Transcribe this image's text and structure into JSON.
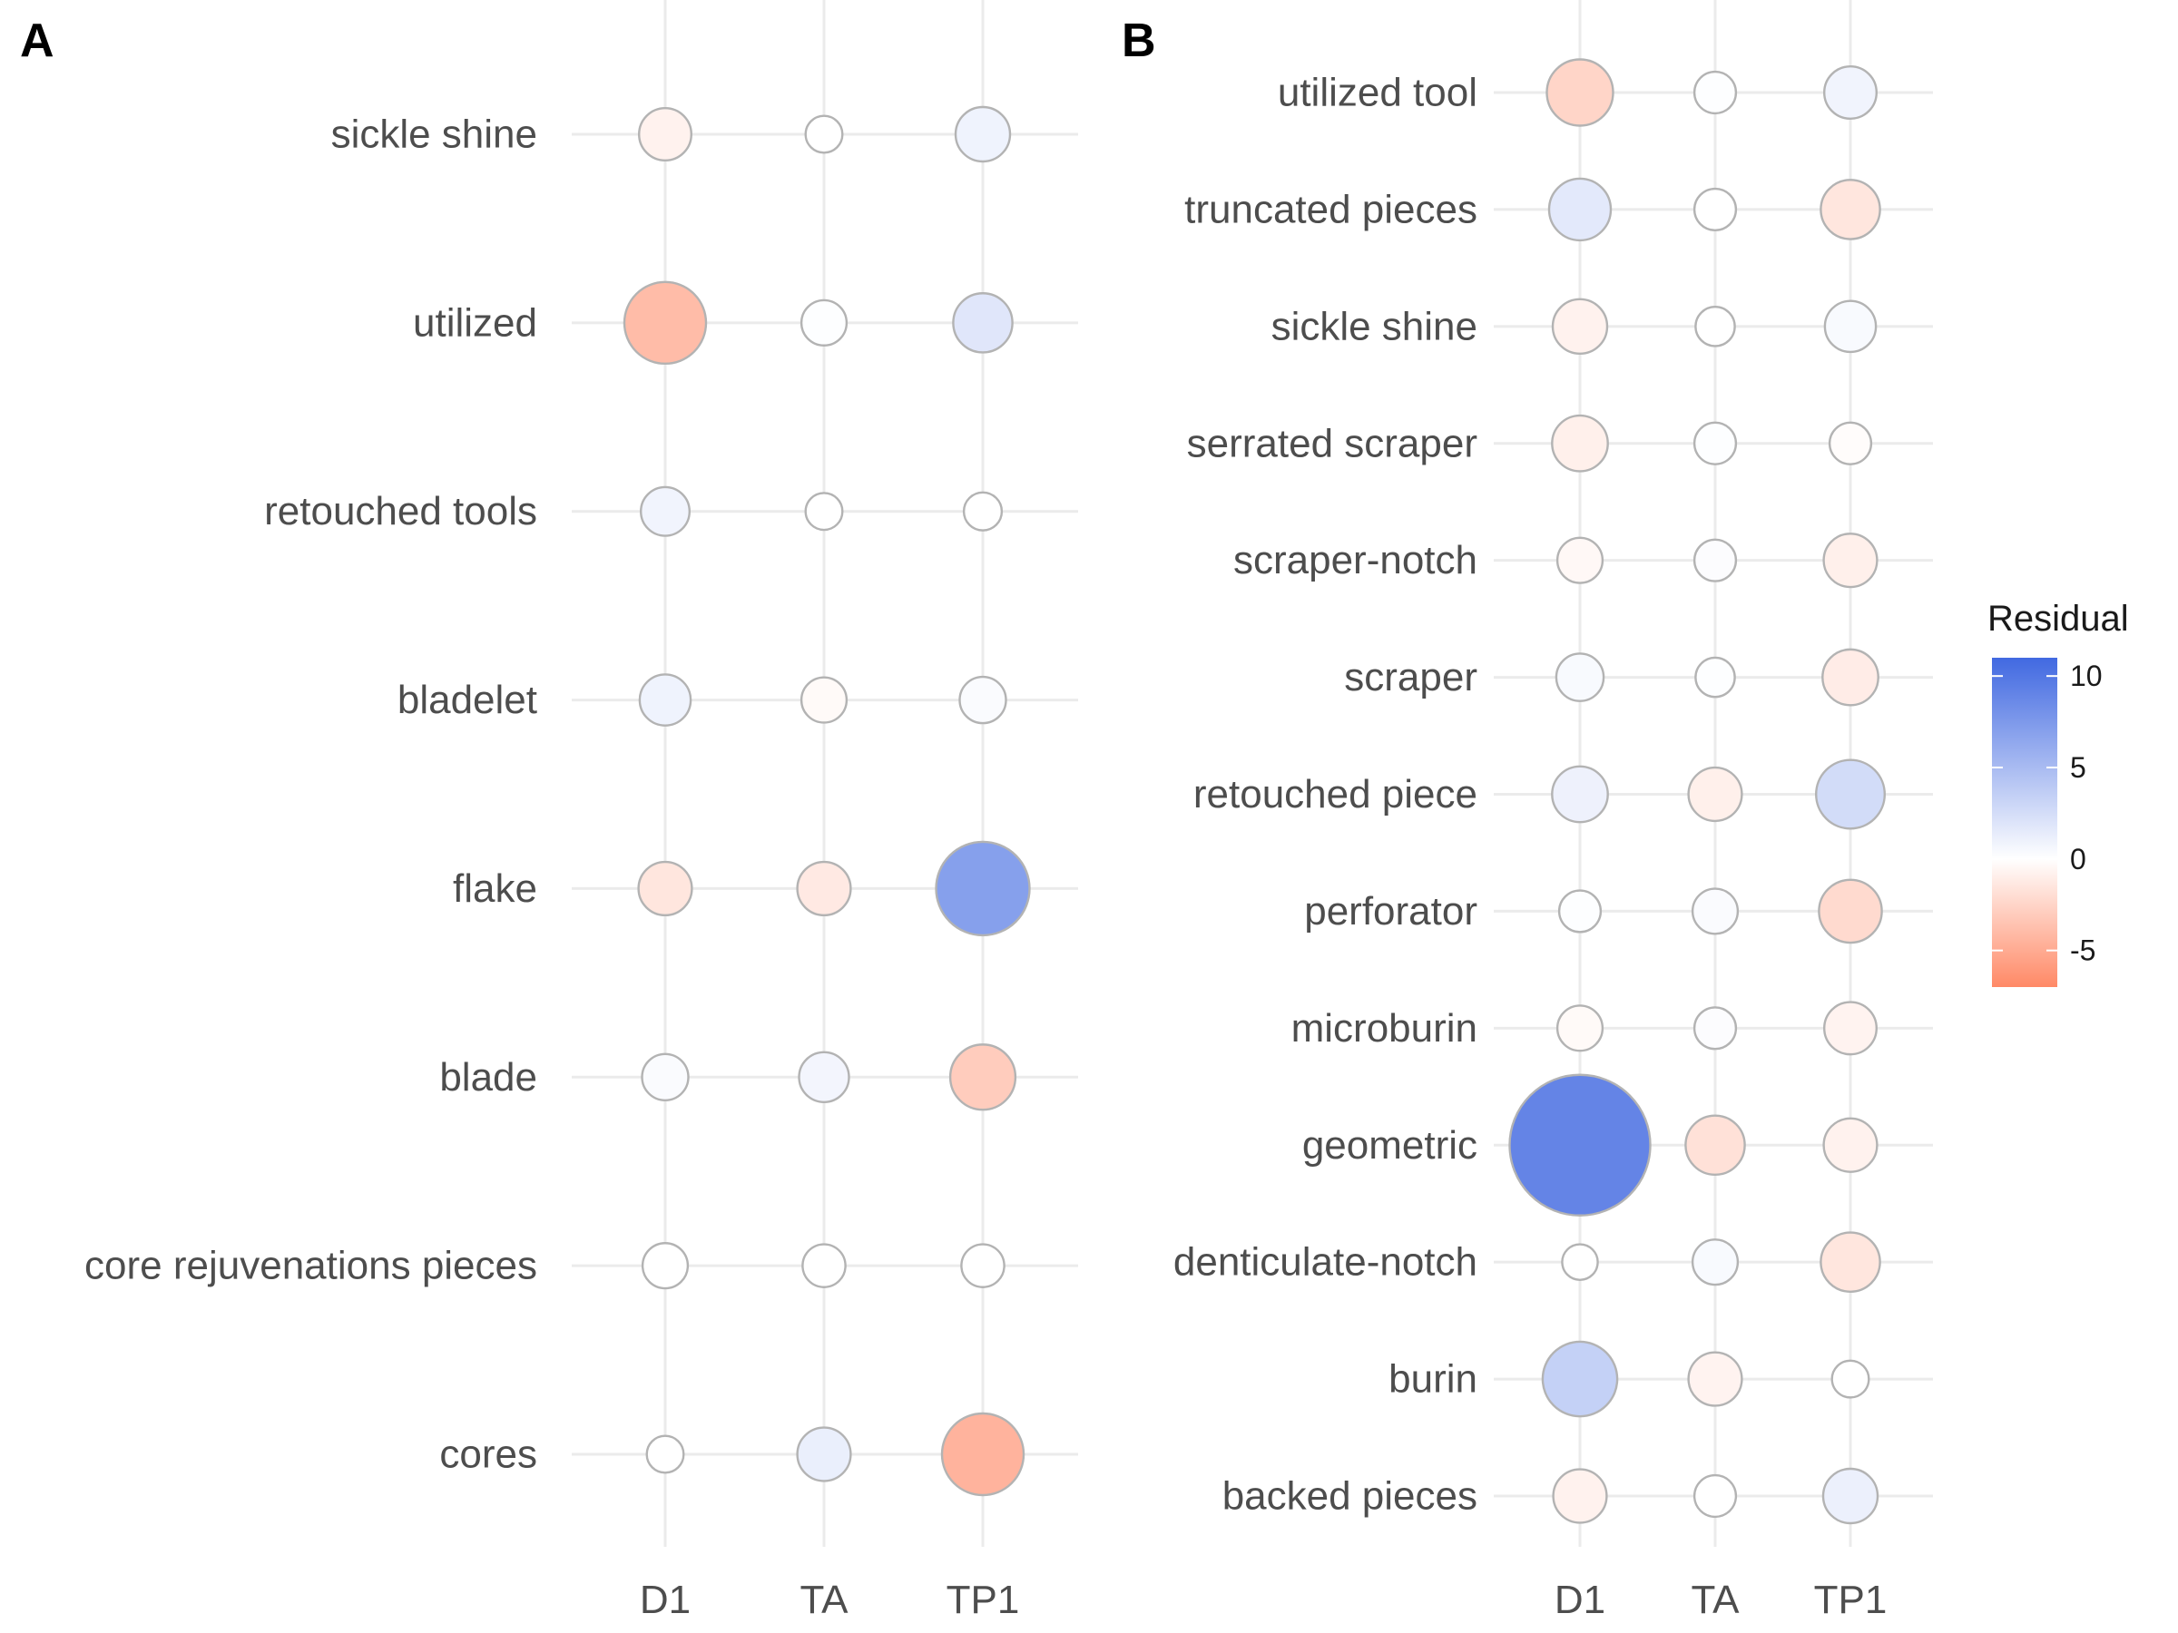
{
  "chart_data": [
    {
      "panel_tag": "A",
      "type": "scatter",
      "x_categories": [
        "D1",
        "TA",
        "TP1"
      ],
      "y_categories": [
        "sickle shine",
        "utilized",
        "retouched tools",
        "bladelet",
        "flake",
        "blade",
        "core rejuvenations pieces",
        "cores"
      ],
      "residuals": [
        [
          -0.8,
          0.0,
          0.9
        ],
        [
          -4.0,
          0.1,
          1.8
        ],
        [
          0.8,
          0.0,
          0.0
        ],
        [
          0.9,
          -0.3,
          0.3
        ],
        [
          -1.5,
          -1.3,
          7.0
        ],
        [
          0.3,
          0.7,
          -3.0
        ],
        [
          0.0,
          0.0,
          0.0
        ],
        [
          0.0,
          1.2,
          -4.5
        ]
      ],
      "abs_size": [
        [
          1.5,
          0.2,
          1.7
        ],
        [
          4.0,
          0.9,
          2.1
        ],
        [
          1.2,
          0.2,
          0.3
        ],
        [
          1.4,
          0.9,
          1.0
        ],
        [
          1.6,
          1.6,
          5.0
        ],
        [
          1.0,
          1.3,
          2.6
        ],
        [
          0.9,
          0.7,
          0.7
        ],
        [
          0.2,
          1.6,
          4.0
        ]
      ]
    },
    {
      "panel_tag": "B",
      "type": "scatter",
      "x_categories": [
        "D1",
        "TA",
        "TP1"
      ],
      "y_categories": [
        "utilized tool",
        "truncated pieces",
        "sickle shine",
        "serrated scraper",
        "scraper-notch",
        "scraper",
        "retouched piece",
        "perforator",
        "microburin",
        "geometric",
        "denticulate-notch",
        "burin",
        "backed pieces"
      ],
      "residuals": [
        [
          -2.5,
          0.1,
          0.8
        ],
        [
          1.6,
          0.0,
          -1.5
        ],
        [
          -0.8,
          0.0,
          0.4
        ],
        [
          -0.9,
          0.1,
          -0.2
        ],
        [
          -0.4,
          0.2,
          -0.9
        ],
        [
          0.4,
          0.1,
          -1.1
        ],
        [
          1.0,
          -0.9,
          2.6
        ],
        [
          0.1,
          0.3,
          -2.2
        ],
        [
          -0.3,
          0.2,
          -0.7
        ],
        [
          9.0,
          -1.8,
          -0.8
        ],
        [
          0.0,
          0.4,
          -1.5
        ],
        [
          3.4,
          -0.7,
          0.0
        ],
        [
          -0.8,
          0.0,
          1.1
        ]
      ],
      "abs_size": [
        [
          2.7,
          0.6,
          1.5
        ],
        [
          2.3,
          0.6,
          2.1
        ],
        [
          1.7,
          0.4,
          1.4
        ],
        [
          1.8,
          0.6,
          0.6
        ],
        [
          0.9,
          0.6,
          1.6
        ],
        [
          1.1,
          0.4,
          1.8
        ],
        [
          1.8,
          1.6,
          2.9
        ],
        [
          0.6,
          0.9,
          2.4
        ],
        [
          0.9,
          0.6,
          1.5
        ],
        [
          9.0,
          2.1,
          1.6
        ],
        [
          0.1,
          0.9,
          2.1
        ],
        [
          3.4,
          1.6,
          0.2
        ],
        [
          1.6,
          0.6,
          1.7
        ]
      ]
    }
  ],
  "legend": {
    "title": "Residual",
    "ticks": [
      10,
      5,
      0,
      -5
    ],
    "range": [
      -7,
      11
    ],
    "colors": {
      "low": "#ff8966",
      "mid": "#ffffff",
      "high": "#4169e1"
    }
  }
}
